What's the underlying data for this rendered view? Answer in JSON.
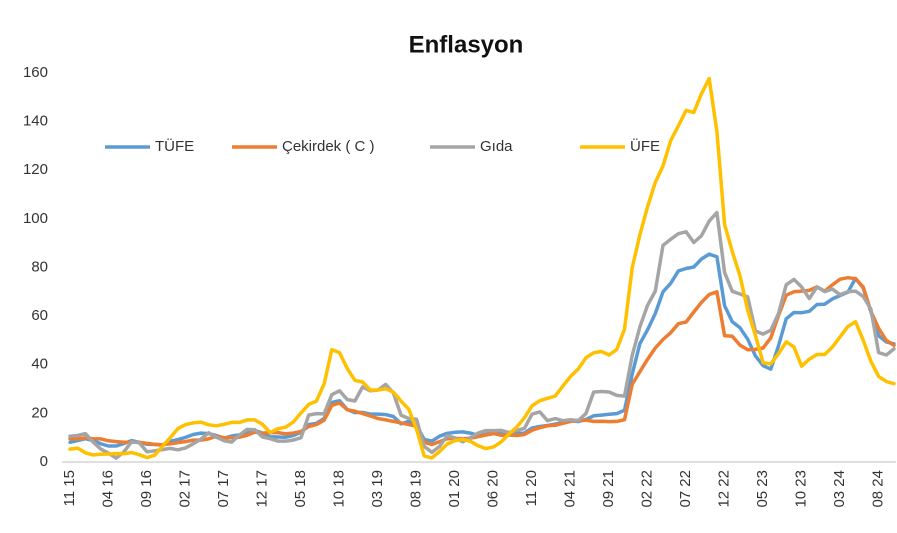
{
  "chart_data": {
    "type": "line",
    "title": "Enflasyon",
    "categories": [
      "11 15",
      null,
      null,
      null,
      null,
      "04 16",
      null,
      null,
      null,
      null,
      "09 16",
      null,
      null,
      null,
      null,
      "02 17",
      null,
      null,
      null,
      null,
      "07 17",
      null,
      null,
      null,
      null,
      "12 17",
      null,
      null,
      null,
      null,
      "05 18",
      null,
      null,
      null,
      null,
      "10 18",
      null,
      null,
      null,
      null,
      "03 19",
      null,
      null,
      null,
      null,
      "08 19",
      null,
      null,
      null,
      null,
      "01 20",
      null,
      null,
      null,
      null,
      "06 20",
      null,
      null,
      null,
      null,
      "11 20",
      null,
      null,
      null,
      null,
      "04 21",
      null,
      null,
      null,
      null,
      "09 21",
      null,
      null,
      null,
      null,
      "02 22",
      null,
      null,
      null,
      null,
      "07 22",
      null,
      null,
      null,
      null,
      "12 22",
      null,
      null,
      null,
      null,
      "05 23",
      null,
      null,
      null,
      null,
      "10 23",
      null,
      null,
      null,
      null,
      "03 24",
      null,
      null,
      null,
      null,
      "08 24",
      null,
      null
    ],
    "series": [
      {
        "name": "TÜFE",
        "color": "#5b9bd5",
        "values": [
          8.1,
          8.8,
          9.6,
          8.8,
          7.5,
          6.6,
          6.6,
          7.6,
          8.8,
          8.1,
          7.3,
          7.2,
          7.0,
          8.5,
          9.2,
          10.1,
          11.3,
          11.9,
          11.7,
          10.9,
          9.8,
          10.7,
          11.2,
          11.9,
          13.0,
          11.9,
          10.4,
          10.3,
          10.2,
          10.9,
          12.2,
          15.4,
          15.9,
          17.9,
          24.5,
          25.2,
          21.6,
          20.3,
          20.4,
          19.7,
          19.7,
          19.5,
          18.7,
          15.7,
          16.7,
          15.0,
          9.3,
          8.6,
          10.6,
          11.8,
          12.2,
          12.4,
          11.9,
          10.9,
          11.4,
          12.6,
          11.8,
          11.8,
          11.8,
          11.9,
          14.0,
          14.6,
          15.0,
          15.6,
          16.2,
          17.1,
          16.6,
          17.5,
          19.0,
          19.3,
          19.6,
          19.9,
          21.3,
          36.1,
          48.7,
          54.4,
          61.1,
          70.0,
          73.5,
          78.6,
          79.6,
          80.2,
          83.5,
          85.5,
          84.4,
          64.3,
          57.7,
          55.2,
          50.5,
          43.7,
          39.6,
          38.2,
          47.8,
          58.9,
          61.5,
          61.4,
          62.0,
          64.8,
          64.9,
          67.1,
          68.5,
          69.8,
          75.5,
          71.6,
          61.8,
          52.0,
          49.4,
          48.6
        ]
      },
      {
        "name": "Çekirdek ( C )",
        "color": "#ed7d31",
        "values": [
          9.6,
          9.5,
          9.9,
          9.6,
          9.5,
          8.7,
          8.4,
          8.1,
          8.1,
          8.1,
          7.7,
          7.3,
          7.1,
          7.5,
          8.0,
          8.4,
          9.0,
          9.0,
          9.5,
          10.6,
          10.0,
          10.0,
          10.2,
          11.0,
          12.3,
          11.9,
          12.1,
          12.1,
          11.6,
          11.9,
          12.6,
          14.6,
          15.4,
          17.2,
          23.3,
          24.3,
          21.5,
          20.9,
          19.9,
          18.9,
          17.9,
          17.3,
          16.7,
          16.1,
          15.4,
          14.7,
          8.1,
          7.2,
          8.4,
          9.6,
          9.8,
          9.5,
          9.8,
          10.4,
          11.1,
          11.7,
          11.0,
          11.1,
          10.9,
          11.3,
          13.1,
          14.1,
          14.9,
          15.1,
          15.9,
          16.7,
          17.1,
          17.2,
          16.7,
          16.8,
          16.6,
          16.7,
          17.4,
          31.9,
          37.2,
          42.3,
          46.9,
          50.4,
          53.2,
          56.9,
          57.6,
          61.7,
          65.7,
          68.9,
          70.0,
          51.9,
          51.7,
          48.1,
          46.2,
          46.3,
          46.9,
          51.1,
          60.2,
          68.6,
          70.0,
          70.3,
          70.6,
          72.0,
          70.3,
          72.9,
          75.2,
          75.8,
          75.4,
          72.0,
          62.0,
          55.0,
          50.0,
          48.0
        ]
      },
      {
        "name": "Gıda",
        "color": "#a5a5a5",
        "values": [
          10.6,
          10.9,
          11.7,
          8.2,
          5.3,
          3.6,
          1.6,
          4.2,
          8.3,
          7.9,
          4.2,
          4.6,
          5.1,
          5.6,
          5.0,
          5.8,
          7.5,
          9.4,
          12.0,
          10.2,
          8.8,
          8.2,
          11.1,
          13.4,
          13.3,
          10.3,
          9.6,
          8.6,
          8.6,
          9.0,
          10.0,
          19.3,
          19.9,
          19.8,
          27.7,
          29.3,
          25.7,
          25.1,
          30.9,
          29.3,
          29.6,
          31.9,
          28.4,
          19.2,
          17.9,
          17.6,
          6.4,
          4.0,
          6.4,
          10.9,
          9.9,
          8.3,
          10.0,
          11.9,
          12.9,
          12.9,
          13.0,
          12.1,
          13.0,
          13.8,
          19.7,
          20.6,
          17.0,
          17.9,
          17.0,
          17.4,
          17.0,
          20.0,
          28.8,
          29.0,
          28.8,
          27.4,
          27.1,
          43.8,
          55.6,
          64.5,
          70.3,
          89.1,
          91.6,
          93.9,
          94.7,
          90.3,
          93.1,
          99.1,
          102.6,
          77.9,
          70.2,
          69.1,
          67.9,
          53.9,
          52.6,
          54.2,
          61.1,
          72.9,
          75.1,
          72.0,
          67.2,
          72.0,
          70.1,
          71.1,
          68.8,
          70.0,
          70.3,
          68.1,
          62.9,
          45.0,
          44.0,
          46.5
        ]
      },
      {
        "name": "ÜFE",
        "color": "#ffc000",
        "values": [
          5.3,
          5.7,
          3.8,
          2.9,
          3.2,
          3.3,
          3.5,
          3.4,
          3.9,
          3.0,
          1.8,
          2.8,
          6.4,
          9.9,
          13.7,
          15.4,
          16.1,
          16.4,
          15.3,
          14.9,
          15.5,
          16.3,
          16.3,
          17.3,
          17.3,
          15.5,
          12.1,
          13.7,
          14.3,
          16.4,
          20.2,
          23.7,
          25.0,
          32.1,
          46.2,
          45.0,
          38.5,
          33.6,
          32.9,
          29.6,
          29.6,
          30.1,
          28.7,
          25.0,
          21.7,
          13.5,
          2.5,
          1.7,
          4.3,
          7.4,
          8.8,
          9.3,
          8.5,
          6.7,
          5.5,
          6.2,
          8.3,
          11.5,
          14.3,
          18.2,
          23.1,
          25.2,
          26.2,
          27.1,
          31.2,
          35.2,
          38.3,
          42.9,
          44.9,
          45.5,
          44.0,
          46.3,
          54.6,
          79.9,
          93.5,
          105.0,
          115.0,
          121.8,
          132.2,
          138.3,
          144.6,
          143.8,
          151.5,
          157.7,
          136.0,
          97.7,
          86.5,
          76.6,
          62.4,
          52.1,
          40.8,
          40.4,
          44.5,
          49.4,
          47.4,
          39.4,
          42.3,
          44.2,
          44.2,
          47.3,
          51.5,
          55.7,
          57.7,
          50.1,
          41.4,
          35.2,
          33.1,
          32.2
        ]
      }
    ],
    "ylim": [
      0,
      160
    ],
    "yticks": [
      0,
      20,
      40,
      60,
      80,
      100,
      120,
      140,
      160
    ],
    "grid": false,
    "legend": "top-left"
  }
}
